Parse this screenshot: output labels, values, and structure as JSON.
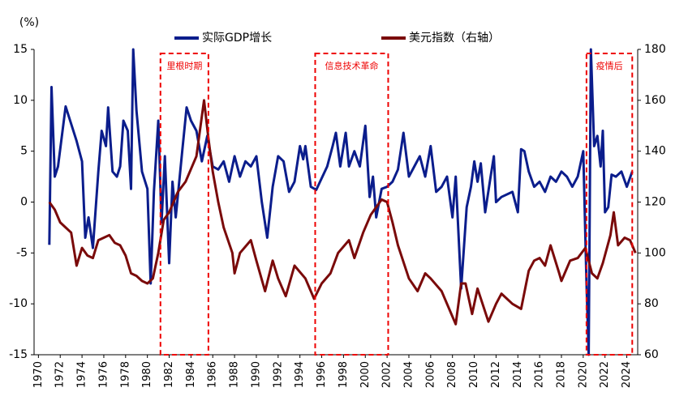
{
  "chart_data": {
    "type": "line",
    "y_unit_label": "(%)",
    "xlim": [
      1969.6,
      2025
    ],
    "xticks": [
      1970,
      1972,
      1974,
      1976,
      1978,
      1980,
      1982,
      1984,
      1986,
      1988,
      1990,
      1992,
      1994,
      1996,
      1998,
      2000,
      2002,
      2004,
      2006,
      2008,
      2010,
      2012,
      2014,
      2016,
      2018,
      2020,
      2022,
      2024
    ],
    "ylim": [
      -15,
      15
    ],
    "yticks": [
      -15,
      -10,
      -5,
      0,
      5,
      10,
      15
    ],
    "y2lim": [
      60,
      180
    ],
    "y2ticks": [
      60,
      80,
      100,
      120,
      140,
      160,
      180
    ],
    "legend": "top",
    "series": [
      {
        "name": "实际GDP增长",
        "color": "#0b1d8c",
        "x": [
          1971.0,
          1971.2,
          1971.5,
          1971.8,
          1972.5,
          1973.5,
          1974,
          1974.3,
          1974.6,
          1975.0,
          1975.5,
          1975.8,
          1976.2,
          1976.4,
          1976.8,
          1977.2,
          1977.5,
          1977.8,
          1978.2,
          1978.5,
          1978.7,
          1979,
          1979.5,
          1980.0,
          1980.3,
          1980.6,
          1981,
          1981.3,
          1981.6,
          1982,
          1982.3,
          1982.6,
          1983.2,
          1983.6,
          1984,
          1984.5,
          1985,
          1985.5,
          1986,
          1986.5,
          1987,
          1987.5,
          1988,
          1988.5,
          1989,
          1989.5,
          1990,
          1990.5,
          1991,
          1991.5,
          1992,
          1992.5,
          1993,
          1993.5,
          1994,
          1994.3,
          1994.5,
          1995,
          1995.5,
          1996.5,
          1997,
          1997.3,
          1997.7,
          1998.2,
          1998.5,
          1999,
          1999.5,
          2000,
          2000.4,
          2000.7,
          2001,
          2001.5,
          2002,
          2002.5,
          2003,
          2003.5,
          2004,
          2004.5,
          2005,
          2005.5,
          2006,
          2006.5,
          2007,
          2007.5,
          2008,
          2008.3,
          2008.8,
          2009.3,
          2009.7,
          2010,
          2010.3,
          2010.6,
          2011,
          2011.5,
          2011.8,
          2012,
          2012.5,
          2013.5,
          2014,
          2014.3,
          2014.6,
          2015,
          2015.5,
          2016,
          2016.5,
          2017,
          2017.5,
          2018,
          2018.5,
          2019,
          2019.5,
          2020,
          2020.3,
          2020.5,
          2020.7,
          2021,
          2021.3,
          2021.6,
          2021.8,
          2022,
          2022.3,
          2022.6,
          2023,
          2023.5,
          2024,
          2024.5
        ],
        "values": [
          -4.2,
          11.3,
          2.5,
          3.5,
          9.4,
          6,
          4,
          -3.5,
          -1.5,
          -4.5,
          3,
          7,
          5.5,
          9.3,
          3,
          2.5,
          3.5,
          8,
          7,
          1.3,
          15,
          9,
          3,
          1.3,
          -8,
          1,
          8,
          -2,
          4.5,
          -6,
          2,
          -1.5,
          5,
          9.3,
          8,
          7,
          4,
          6.5,
          3.5,
          3.2,
          4,
          2,
          4.5,
          2.5,
          4,
          3.5,
          4.5,
          0,
          -3.5,
          1.5,
          4.5,
          4,
          1,
          2,
          5.5,
          4.2,
          5.5,
          1.5,
          1.2,
          3.5,
          5.5,
          6.8,
          3.5,
          6.8,
          3.5,
          5,
          3.5,
          7.5,
          0.5,
          2.5,
          -1.5,
          1.3,
          1.5,
          2,
          3.2,
          6.8,
          2.5,
          3.5,
          4.5,
          2.5,
          5.5,
          1,
          1.5,
          2.5,
          -1.5,
          2.5,
          -8.5,
          -0.5,
          1.5,
          4,
          2,
          3.8,
          -1,
          2.5,
          4.5,
          0,
          0.5,
          1,
          -1,
          5.2,
          5,
          3,
          1.5,
          2,
          1,
          2.5,
          2,
          3,
          2.5,
          1.5,
          2.5,
          5,
          -8,
          -15,
          15,
          5.5,
          6.5,
          3.5,
          7,
          -1,
          -0.5,
          2.7,
          2.5,
          3,
          1.5,
          3
        ]
      },
      {
        "name": "美元指数（右轴）",
        "color": "#7a0a0a",
        "axis": "y2",
        "x": [
          1971,
          1971.5,
          1972,
          1972.5,
          1973,
          1973.2,
          1973.5,
          1974,
          1974.5,
          1975,
          1975.5,
          1976,
          1976.5,
          1977,
          1977.5,
          1978,
          1978.5,
          1979,
          1979.5,
          1980,
          1980.5,
          1981,
          1981.5,
          1982,
          1982.8,
          1983.5,
          1984.5,
          1985.2,
          1985.6,
          1986,
          1986.5,
          1987,
          1987.8,
          1988,
          1988.5,
          1989.5,
          1990,
          1990.8,
          1991.5,
          1992,
          1992.7,
          1993.5,
          1994.5,
          1995.3,
          1996,
          1996.8,
          1997.5,
          1998.5,
          1999,
          1999.8,
          2000.5,
          2001,
          2001.5,
          2002,
          2002.5,
          2003,
          2004,
          2004.8,
          2005.5,
          2006,
          2007,
          2007.8,
          2008.3,
          2008.8,
          2009.2,
          2009.8,
          2010.3,
          2011.3,
          2012,
          2012.5,
          2013.5,
          2014.3,
          2015,
          2015.5,
          2016,
          2016.5,
          2017,
          2017.8,
          2018,
          2018.8,
          2019.5,
          2020.2,
          2020.8,
          2021.3,
          2021.8,
          2022.5,
          2022.8,
          2023.2,
          2023.8,
          2024.3,
          2024.8
        ],
        "values": [
          120,
          117,
          112,
          110,
          108,
          103,
          95,
          102,
          99,
          98,
          105,
          106,
          107,
          104,
          103,
          99,
          92,
          91,
          89,
          88,
          90,
          100,
          113,
          116,
          124,
          128,
          138,
          160,
          145,
          132,
          120,
          110,
          100,
          92,
          100,
          105,
          97,
          85,
          97,
          90,
          83,
          95,
          90,
          82,
          88,
          92,
          100,
          105,
          98,
          108,
          115,
          118,
          121,
          120,
          112,
          103,
          90,
          85,
          92,
          90,
          85,
          77,
          72,
          88,
          88,
          76,
          86,
          73,
          80,
          84,
          80,
          78,
          93,
          97,
          98,
          95,
          103,
          92,
          89,
          97,
          98,
          102,
          92,
          90,
          96,
          107,
          116,
          103,
          106,
          105,
          100
        ]
      }
    ],
    "annotations": [
      {
        "text": "里根时期",
        "x": [
          1981.2,
          1985.6
        ]
      },
      {
        "text": "信息技术革命",
        "x": [
          1995.4,
          2002.1
        ]
      },
      {
        "text": "疫情后",
        "x": [
          2020.3,
          2024.5
        ]
      }
    ]
  }
}
